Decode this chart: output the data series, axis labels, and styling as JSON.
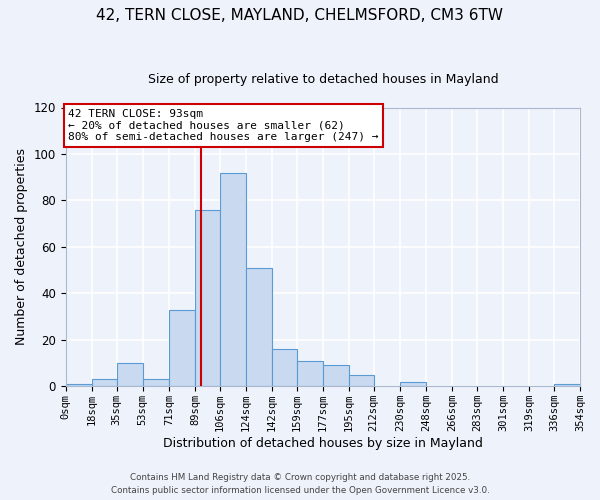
{
  "title": "42, TERN CLOSE, MAYLAND, CHELMSFORD, CM3 6TW",
  "subtitle": "Size of property relative to detached houses in Mayland",
  "xlabel": "Distribution of detached houses by size in Mayland",
  "ylabel": "Number of detached properties",
  "bar_color": "#c8d9f0",
  "bar_edge_color": "#5b9bd5",
  "background_color": "#eef2fb",
  "grid_color": "#ffffff",
  "vline_x": 93,
  "vline_color": "#cc0000",
  "bin_edges": [
    0,
    18,
    35,
    53,
    71,
    89,
    106,
    124,
    142,
    159,
    177,
    195,
    212,
    230,
    248,
    266,
    283,
    301,
    319,
    336,
    354
  ],
  "bin_counts": [
    1,
    3,
    10,
    3,
    33,
    76,
    92,
    51,
    16,
    11,
    9,
    5,
    0,
    2,
    0,
    0,
    0,
    0,
    0,
    1
  ],
  "ylim": [
    0,
    120
  ],
  "yticks": [
    0,
    20,
    40,
    60,
    80,
    100,
    120
  ],
  "annotation_title": "42 TERN CLOSE: 93sqm",
  "annotation_line1": "← 20% of detached houses are smaller (62)",
  "annotation_line2": "80% of semi-detached houses are larger (247) →",
  "annotation_box_color": "#ffffff",
  "annotation_box_edge": "#cc0000",
  "footer1": "Contains HM Land Registry data © Crown copyright and database right 2025.",
  "footer2": "Contains public sector information licensed under the Open Government Licence v3.0.",
  "tick_labels": [
    "0sqm",
    "18sqm",
    "35sqm",
    "53sqm",
    "71sqm",
    "89sqm",
    "106sqm",
    "124sqm",
    "142sqm",
    "159sqm",
    "177sqm",
    "195sqm",
    "212sqm",
    "230sqm",
    "248sqm",
    "266sqm",
    "283sqm",
    "301sqm",
    "319sqm",
    "336sqm",
    "354sqm"
  ]
}
